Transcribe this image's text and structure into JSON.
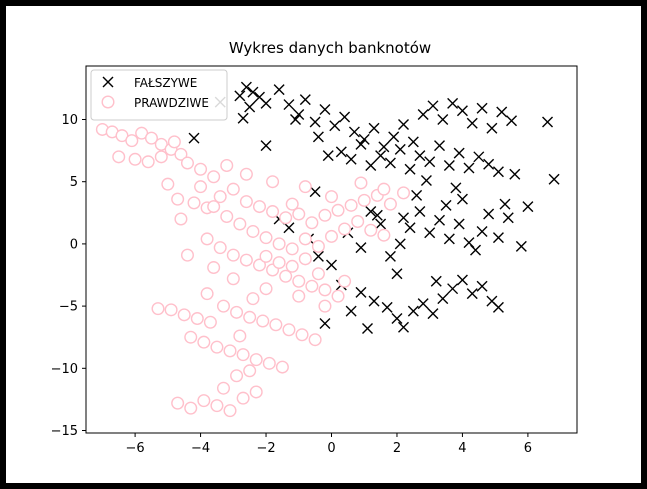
{
  "chart_data": {
    "type": "scatter",
    "title": "Wykres danych banknotów",
    "xlabel": "",
    "ylabel": "",
    "xlim": [
      -7.5,
      7.5
    ],
    "ylim": [
      -15.2,
      14.3
    ],
    "xticks": [
      -6,
      -4,
      -2,
      0,
      2,
      4,
      6
    ],
    "yticks": [
      -15,
      -10,
      -5,
      0,
      5,
      10
    ],
    "tick_labels": {
      "x": [
        "−6",
        "−4",
        "−2",
        "0",
        "2",
        "4",
        "6"
      ],
      "y": [
        "−15",
        "−10",
        "−5",
        "0",
        "5",
        "10"
      ]
    },
    "grid": false,
    "legend": {
      "position": "top-left"
    },
    "series": [
      {
        "name": "FAŁSZYWE",
        "marker": "x",
        "color": "#000000",
        "points": [
          [
            -2.6,
            12.6
          ],
          [
            -2.4,
            12.2
          ],
          [
            -2.2,
            11.8
          ],
          [
            -2.0,
            11.3
          ],
          [
            -2.5,
            11.0
          ],
          [
            -2.8,
            11.9
          ],
          [
            -1.6,
            12.4
          ],
          [
            -1.3,
            11.2
          ],
          [
            -1.0,
            10.4
          ],
          [
            -0.8,
            11.6
          ],
          [
            -0.5,
            9.8
          ],
          [
            -0.2,
            10.8
          ],
          [
            0.1,
            9.5
          ],
          [
            0.4,
            10.2
          ],
          [
            0.7,
            9.0
          ],
          [
            1.0,
            8.4
          ],
          [
            1.3,
            9.3
          ],
          [
            1.6,
            7.8
          ],
          [
            1.9,
            8.6
          ],
          [
            2.2,
            9.6
          ],
          [
            2.5,
            8.2
          ],
          [
            2.8,
            10.4
          ],
          [
            3.1,
            11.1
          ],
          [
            3.4,
            10.0
          ],
          [
            3.7,
            11.3
          ],
          [
            4.0,
            10.7
          ],
          [
            4.3,
            9.7
          ],
          [
            4.6,
            10.9
          ],
          [
            4.9,
            9.3
          ],
          [
            5.2,
            10.6
          ],
          [
            5.5,
            9.9
          ],
          [
            0.3,
            7.4
          ],
          [
            0.6,
            6.8
          ],
          [
            0.9,
            8.0
          ],
          [
            1.2,
            6.3
          ],
          [
            1.5,
            7.1
          ],
          [
            1.8,
            6.5
          ],
          [
            2.1,
            7.6
          ],
          [
            2.4,
            6.0
          ],
          [
            2.7,
            7.1
          ],
          [
            3.0,
            6.6
          ],
          [
            3.3,
            7.9
          ],
          [
            3.6,
            6.3
          ],
          [
            3.9,
            7.3
          ],
          [
            4.2,
            6.1
          ],
          [
            4.5,
            7.0
          ],
          [
            4.8,
            6.4
          ],
          [
            5.1,
            5.8
          ],
          [
            5.6,
            5.6
          ],
          [
            -0.4,
            8.6
          ],
          [
            -0.1,
            7.1
          ],
          [
            -1.1,
            10.0
          ],
          [
            -4.2,
            8.5
          ],
          [
            -2.0,
            7.9
          ],
          [
            -2.7,
            10.1
          ],
          [
            -3.4,
            11.4
          ],
          [
            6.6,
            9.8
          ],
          [
            6.8,
            5.2
          ],
          [
            6.0,
            3.0
          ],
          [
            5.4,
            2.1
          ],
          [
            5.8,
            -0.2
          ],
          [
            5.1,
            0.5
          ],
          [
            4.6,
            1.0
          ],
          [
            4.2,
            0.1
          ],
          [
            3.9,
            1.6
          ],
          [
            3.6,
            0.4
          ],
          [
            3.3,
            1.9
          ],
          [
            3.0,
            0.9
          ],
          [
            2.7,
            2.6
          ],
          [
            2.4,
            1.3
          ],
          [
            2.1,
            0.0
          ],
          [
            1.8,
            -1.0
          ],
          [
            1.5,
            1.6
          ],
          [
            1.2,
            2.6
          ],
          [
            0.9,
            -0.3
          ],
          [
            0.5,
            0.9
          ],
          [
            0.0,
            -1.7
          ],
          [
            -0.4,
            -1.0
          ],
          [
            -0.7,
            0.4
          ],
          [
            -1.3,
            1.3
          ],
          [
            -1.6,
            2.0
          ],
          [
            -0.5,
            4.2
          ],
          [
            0.3,
            -3.3
          ],
          [
            0.9,
            -3.9
          ],
          [
            1.3,
            -4.6
          ],
          [
            1.7,
            -5.1
          ],
          [
            2.0,
            -6.0
          ],
          [
            2.2,
            -6.7
          ],
          [
            2.5,
            -5.4
          ],
          [
            2.8,
            -4.8
          ],
          [
            3.1,
            -5.6
          ],
          [
            3.4,
            -4.4
          ],
          [
            3.7,
            -3.6
          ],
          [
            4.0,
            -2.9
          ],
          [
            4.3,
            -4.0
          ],
          [
            4.6,
            -3.4
          ],
          [
            4.9,
            -4.6
          ],
          [
            5.1,
            -5.1
          ],
          [
            3.2,
            -3.0
          ],
          [
            1.1,
            -6.8
          ],
          [
            0.6,
            -5.4
          ],
          [
            -0.2,
            -6.4
          ],
          [
            2.0,
            -2.4
          ],
          [
            4.4,
            -0.5
          ],
          [
            4.0,
            3.6
          ],
          [
            3.5,
            3.1
          ],
          [
            2.6,
            3.9
          ],
          [
            2.2,
            2.1
          ],
          [
            1.4,
            2.3
          ],
          [
            4.8,
            2.4
          ],
          [
            5.3,
            3.2
          ],
          [
            3.8,
            4.5
          ],
          [
            2.9,
            5.1
          ]
        ]
      },
      {
        "name": "PRAWDZIWE",
        "marker": "o",
        "color": "#ffc0cb",
        "points": [
          [
            -7.0,
            9.2
          ],
          [
            -6.7,
            9.0
          ],
          [
            -6.4,
            8.7
          ],
          [
            -6.1,
            8.3
          ],
          [
            -5.8,
            8.9
          ],
          [
            -5.5,
            8.5
          ],
          [
            -5.2,
            8.0
          ],
          [
            -4.9,
            7.6
          ],
          [
            -4.6,
            7.2
          ],
          [
            -6.5,
            7.0
          ],
          [
            -6.0,
            6.8
          ],
          [
            -5.6,
            6.6
          ],
          [
            -5.2,
            7.0
          ],
          [
            -4.8,
            8.2
          ],
          [
            -4.4,
            6.5
          ],
          [
            -4.0,
            6.0
          ],
          [
            -3.6,
            5.4
          ],
          [
            -5.0,
            4.8
          ],
          [
            -4.7,
            3.6
          ],
          [
            -4.2,
            3.3
          ],
          [
            -3.8,
            2.9
          ],
          [
            -3.4,
            3.8
          ],
          [
            -3.0,
            4.4
          ],
          [
            -2.6,
            3.4
          ],
          [
            -2.2,
            3.0
          ],
          [
            -1.8,
            2.6
          ],
          [
            -1.4,
            2.1
          ],
          [
            -1.0,
            2.4
          ],
          [
            -0.6,
            1.7
          ],
          [
            -0.2,
            2.3
          ],
          [
            0.2,
            2.7
          ],
          [
            0.6,
            3.1
          ],
          [
            1.0,
            3.5
          ],
          [
            1.4,
            3.9
          ],
          [
            1.8,
            3.2
          ],
          [
            2.2,
            4.1
          ],
          [
            -4.0,
            4.6
          ],
          [
            -3.6,
            3.0
          ],
          [
            -3.2,
            2.2
          ],
          [
            -2.8,
            1.6
          ],
          [
            -2.4,
            1.0
          ],
          [
            -2.0,
            0.5
          ],
          [
            -1.6,
            0.0
          ],
          [
            -1.2,
            -0.4
          ],
          [
            -0.8,
            0.4
          ],
          [
            -0.4,
            -0.2
          ],
          [
            0.0,
            0.6
          ],
          [
            0.4,
            1.2
          ],
          [
            0.8,
            1.8
          ],
          [
            1.2,
            1.1
          ],
          [
            1.6,
            0.7
          ],
          [
            -3.8,
            0.4
          ],
          [
            -3.4,
            -0.3
          ],
          [
            -3.0,
            -0.9
          ],
          [
            -2.6,
            -1.3
          ],
          [
            -2.2,
            -1.7
          ],
          [
            -1.8,
            -2.1
          ],
          [
            -1.4,
            -2.6
          ],
          [
            -1.0,
            -3.0
          ],
          [
            -0.6,
            -3.4
          ],
          [
            -0.2,
            -3.7
          ],
          [
            0.2,
            -4.2
          ],
          [
            -2.0,
            -1.0
          ],
          [
            -1.6,
            -1.5
          ],
          [
            -1.2,
            -1.8
          ],
          [
            -0.8,
            -1.2
          ],
          [
            -0.4,
            -2.4
          ],
          [
            -5.3,
            -5.2
          ],
          [
            -4.9,
            -5.3
          ],
          [
            -4.5,
            -5.7
          ],
          [
            -4.1,
            -6.0
          ],
          [
            -3.7,
            -6.3
          ],
          [
            -3.3,
            -5.0
          ],
          [
            -2.9,
            -5.5
          ],
          [
            -2.5,
            -5.9
          ],
          [
            -2.1,
            -6.2
          ],
          [
            -1.7,
            -6.5
          ],
          [
            -1.3,
            -6.9
          ],
          [
            -0.9,
            -7.3
          ],
          [
            -0.5,
            -7.7
          ],
          [
            -4.3,
            -7.5
          ],
          [
            -3.9,
            -7.9
          ],
          [
            -3.5,
            -8.3
          ],
          [
            -3.1,
            -8.6
          ],
          [
            -2.7,
            -8.9
          ],
          [
            -2.3,
            -9.3
          ],
          [
            -1.9,
            -9.6
          ],
          [
            -1.5,
            -9.9
          ],
          [
            -2.9,
            -10.6
          ],
          [
            -2.5,
            -10.2
          ],
          [
            -4.7,
            -12.8
          ],
          [
            -4.3,
            -13.2
          ],
          [
            -3.9,
            -12.6
          ],
          [
            -3.5,
            -13.0
          ],
          [
            -3.1,
            -13.4
          ],
          [
            -2.7,
            -12.4
          ],
          [
            -2.3,
            -11.9
          ],
          [
            -3.3,
            -11.6
          ],
          [
            -1.0,
            -4.2
          ],
          [
            -0.2,
            -5.0
          ],
          [
            0.4,
            -3.0
          ],
          [
            -2.0,
            -3.6
          ],
          [
            -3.0,
            -2.8
          ],
          [
            -3.6,
            -1.9
          ],
          [
            -4.4,
            -0.9
          ],
          [
            -2.4,
            -4.4
          ],
          [
            -3.8,
            -4.0
          ],
          [
            -1.8,
            5.0
          ],
          [
            -2.6,
            5.6
          ],
          [
            -3.2,
            6.3
          ],
          [
            -0.8,
            4.6
          ],
          [
            0.0,
            3.8
          ],
          [
            0.9,
            4.9
          ],
          [
            1.6,
            4.4
          ],
          [
            -1.2,
            3.2
          ],
          [
            -4.6,
            2.0
          ],
          [
            -2.8,
            -7.4
          ]
        ]
      }
    ]
  }
}
